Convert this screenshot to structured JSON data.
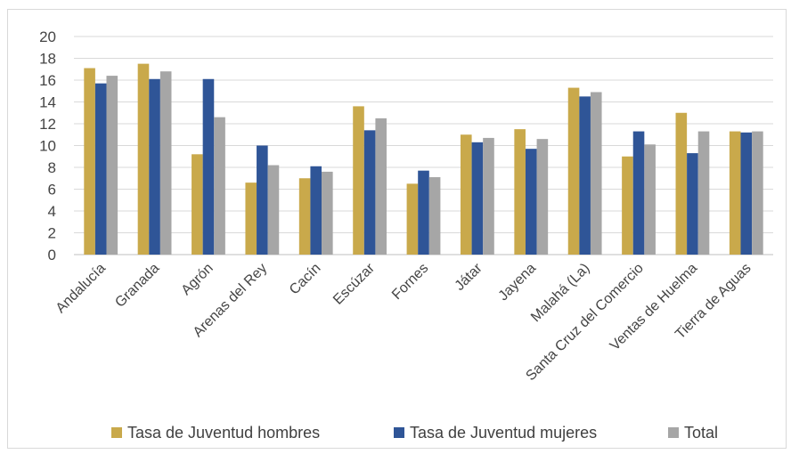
{
  "chart_data": {
    "type": "bar",
    "title": "",
    "xlabel": "",
    "ylabel": "",
    "ylim": [
      0,
      20
    ],
    "yticks": [
      0,
      2,
      4,
      6,
      8,
      10,
      12,
      14,
      16,
      18,
      20
    ],
    "grid": true,
    "legend_position": "bottom",
    "categories": [
      "Andalucía",
      "Granada",
      "Agrón",
      "Arenas del Rey",
      "Cacín",
      "Escúzar",
      "Fornes",
      "Játar",
      "Jayena",
      "Malahá (La)",
      "Santa Cruz del Comercio",
      "Ventas de Huelma",
      "Tierra de Aguas"
    ],
    "series": [
      {
        "name": "Tasa de Juventud hombres",
        "color": "#c9a94b",
        "values": [
          17.1,
          17.5,
          9.2,
          6.6,
          7.0,
          13.6,
          6.5,
          11.0,
          11.5,
          15.3,
          9.0,
          13.0,
          11.3
        ]
      },
      {
        "name": "Tasa de Juventud mujeres",
        "color": "#2f5597",
        "values": [
          15.7,
          16.1,
          16.1,
          10.0,
          8.1,
          11.4,
          7.7,
          10.3,
          9.7,
          14.5,
          11.3,
          9.3,
          11.2
        ]
      },
      {
        "name": "Total",
        "color": "#a6a6a6",
        "values": [
          16.4,
          16.8,
          12.6,
          8.2,
          7.6,
          12.5,
          7.1,
          10.7,
          10.6,
          14.9,
          10.1,
          11.3,
          11.3
        ]
      }
    ]
  }
}
